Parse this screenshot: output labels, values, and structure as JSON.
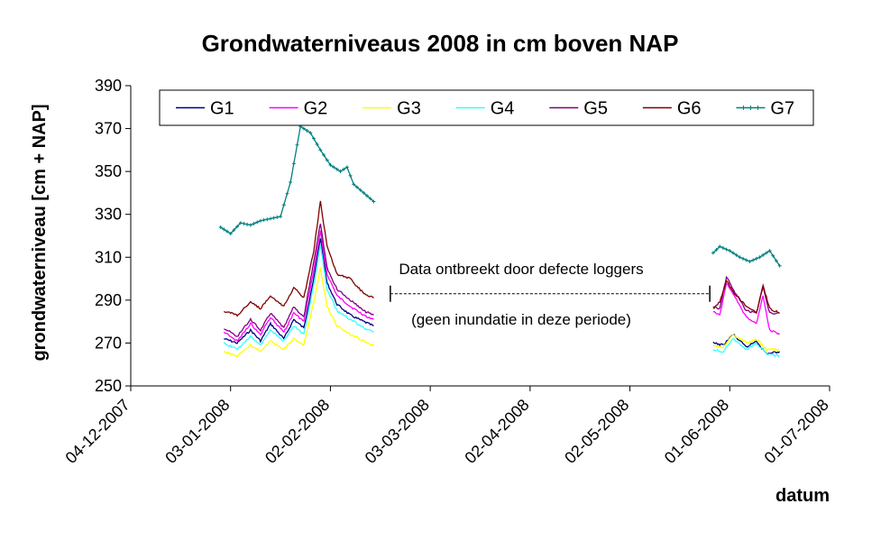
{
  "chart_data": {
    "type": "line",
    "title": "Grondwaterniveaus 2008 in cm boven NAP",
    "xlabel": "datum",
    "ylabel": "grondwaterniveau [cm + NAP]",
    "ylim": [
      250,
      390
    ],
    "yticks": [
      250,
      270,
      290,
      310,
      330,
      350,
      370,
      390
    ],
    "xlim": [
      "2007-12-04",
      "2008-07-01"
    ],
    "xticks": [
      {
        "date": "2007-12-04",
        "label": "04-12-2007"
      },
      {
        "date": "2008-01-03",
        "label": "03-01-2008"
      },
      {
        "date": "2008-02-02",
        "label": "02-02-2008"
      },
      {
        "date": "2008-03-03",
        "label": "03-03-2008"
      },
      {
        "date": "2008-04-02",
        "label": "02-04-2008"
      },
      {
        "date": "2008-05-02",
        "label": "02-05-2008"
      },
      {
        "date": "2008-06-01",
        "label": "01-06-2008"
      },
      {
        "date": "2008-07-01",
        "label": "01-07-2008"
      }
    ],
    "grid": false,
    "legend_position": "top",
    "series": [
      {
        "name": "G1",
        "color": "#000080",
        "marker": "none",
        "segments": [
          {
            "x": [
              "2008-01-01",
              "2008-01-05",
              "2008-01-09",
              "2008-01-12",
              "2008-01-15",
              "2008-01-19",
              "2008-01-22",
              "2008-01-25",
              "2008-01-28",
              "2008-01-30",
              "2008-02-01",
              "2008-02-04",
              "2008-02-08",
              "2008-02-12",
              "2008-02-15"
            ],
            "y": [
              272,
              270,
              276,
              271,
              279,
              272,
              281,
              277,
              300,
              319,
              298,
              288,
              283,
              280,
              278
            ]
          },
          {
            "x": [
              "2008-05-27",
              "2008-05-30",
              "2008-06-02",
              "2008-06-06",
              "2008-06-09",
              "2008-06-12",
              "2008-06-16"
            ],
            "y": [
              270,
              269,
              274,
              268,
              271,
              265,
              266
            ]
          }
        ]
      },
      {
        "name": "G2",
        "color": "#ff00ff",
        "marker": "none",
        "segments": [
          {
            "x": [
              "2008-01-01",
              "2008-01-05",
              "2008-01-09",
              "2008-01-12",
              "2008-01-15",
              "2008-01-19",
              "2008-01-22",
              "2008-01-25",
              "2008-01-28",
              "2008-01-30",
              "2008-02-01",
              "2008-02-04",
              "2008-02-08",
              "2008-02-12",
              "2008-02-15"
            ],
            "y": [
              275,
              271,
              279,
              274,
              282,
              275,
              284,
              280,
              304,
              322,
              302,
              292,
              287,
              283,
              281
            ]
          },
          {
            "x": [
              "2008-05-27",
              "2008-05-29",
              "2008-05-31",
              "2008-06-02",
              "2008-06-06",
              "2008-06-09",
              "2008-06-11",
              "2008-06-13",
              "2008-06-16"
            ],
            "y": [
              285,
              283,
              298,
              293,
              282,
              279,
              292,
              276,
              274
            ]
          }
        ]
      },
      {
        "name": "G3",
        "color": "#ffff00",
        "marker": "none",
        "segments": [
          {
            "x": [
              "2008-01-01",
              "2008-01-05",
              "2008-01-09",
              "2008-01-12",
              "2008-01-15",
              "2008-01-19",
              "2008-01-22",
              "2008-01-25",
              "2008-01-28",
              "2008-01-30",
              "2008-02-01",
              "2008-02-04",
              "2008-02-08",
              "2008-02-12",
              "2008-02-15"
            ],
            "y": [
              266,
              264,
              269,
              266,
              271,
              267,
              272,
              269,
              289,
              305,
              287,
              278,
              274,
              271,
              269
            ]
          },
          {
            "x": [
              "2008-05-27",
              "2008-05-30",
              "2008-06-02",
              "2008-06-06",
              "2008-06-09",
              "2008-06-12",
              "2008-06-16"
            ],
            "y": [
              269,
              268,
              274,
              270,
              272,
              267,
              267
            ]
          }
        ]
      },
      {
        "name": "G4",
        "color": "#33ffff",
        "marker": "none",
        "segments": [
          {
            "x": [
              "2008-01-01",
              "2008-01-05",
              "2008-01-09",
              "2008-01-12",
              "2008-01-15",
              "2008-01-19",
              "2008-01-22",
              "2008-01-25",
              "2008-01-28",
              "2008-01-30",
              "2008-02-01",
              "2008-02-04",
              "2008-02-08",
              "2008-02-12",
              "2008-02-15"
            ],
            "y": [
              270,
              267,
              273,
              269,
              276,
              271,
              278,
              274,
              297,
              316,
              295,
              285,
              281,
              277,
              275
            ]
          },
          {
            "x": [
              "2008-05-27",
              "2008-05-30",
              "2008-06-02",
              "2008-06-06",
              "2008-06-09",
              "2008-06-12",
              "2008-06-16"
            ],
            "y": [
              267,
              266,
              272,
              267,
              270,
              265,
              264
            ]
          }
        ]
      },
      {
        "name": "G5",
        "color": "#800080",
        "marker": "none",
        "segments": [
          {
            "x": [
              "2008-01-01",
              "2008-01-05",
              "2008-01-09",
              "2008-01-12",
              "2008-01-15",
              "2008-01-19",
              "2008-01-22",
              "2008-01-25",
              "2008-01-28",
              "2008-01-30",
              "2008-02-01",
              "2008-02-04",
              "2008-02-08",
              "2008-02-12",
              "2008-02-15"
            ],
            "y": [
              277,
              273,
              281,
              276,
              284,
              277,
              287,
              282,
              308,
              326,
              305,
              295,
              290,
              285,
              283
            ]
          },
          {
            "x": [
              "2008-05-27",
              "2008-05-29",
              "2008-05-31",
              "2008-06-02",
              "2008-06-06",
              "2008-06-09",
              "2008-06-11",
              "2008-06-13",
              "2008-06-16"
            ],
            "y": [
              287,
              286,
              301,
              295,
              285,
              284,
              296,
              284,
              284
            ]
          }
        ]
      },
      {
        "name": "G6",
        "color": "#800000",
        "marker": "none",
        "segments": [
          {
            "x": [
              "2008-01-01",
              "2008-01-05",
              "2008-01-09",
              "2008-01-12",
              "2008-01-15",
              "2008-01-19",
              "2008-01-22",
              "2008-01-25",
              "2008-01-28",
              "2008-01-30",
              "2008-02-01",
              "2008-02-04",
              "2008-02-08",
              "2008-02-12",
              "2008-02-15"
            ],
            "y": [
              285,
              283,
              289,
              286,
              292,
              287,
              296,
              291,
              313,
              336,
              315,
              302,
              300,
              293,
              291
            ]
          },
          {
            "x": [
              "2008-05-27",
              "2008-05-29",
              "2008-05-31",
              "2008-06-02",
              "2008-06-06",
              "2008-06-09",
              "2008-06-11",
              "2008-06-13",
              "2008-06-16"
            ],
            "y": [
              286,
              289,
              299,
              294,
              287,
              284,
              297,
              286,
              284
            ]
          }
        ]
      },
      {
        "name": "G7",
        "color": "#008080",
        "marker": "plus",
        "segments": [
          {
            "x": [
              "2007-12-31",
              "2008-01-03",
              "2008-01-06",
              "2008-01-09",
              "2008-01-12",
              "2008-01-15",
              "2008-01-18",
              "2008-01-21",
              "2008-01-24",
              "2008-01-27",
              "2008-01-30",
              "2008-02-02",
              "2008-02-05",
              "2008-02-07",
              "2008-02-09",
              "2008-02-12",
              "2008-02-15"
            ],
            "y": [
              324,
              321,
              326,
              325,
              327,
              328,
              329,
              345,
              371,
              368,
              360,
              353,
              350,
              352,
              344,
              340,
              336
            ]
          },
          {
            "x": [
              "2008-05-27",
              "2008-05-29",
              "2008-06-01",
              "2008-06-04",
              "2008-06-07",
              "2008-06-10",
              "2008-06-13",
              "2008-06-16"
            ],
            "y": [
              312,
              315,
              313,
              310,
              308,
              310,
              313,
              306
            ]
          }
        ]
      }
    ],
    "annotations": {
      "line1": "Data ontbreekt door defecte loggers",
      "line2": "(geen inundatie in deze periode)",
      "bracket_from": "2008-02-20",
      "bracket_to": "2008-05-26",
      "bracket_y": 293
    }
  }
}
